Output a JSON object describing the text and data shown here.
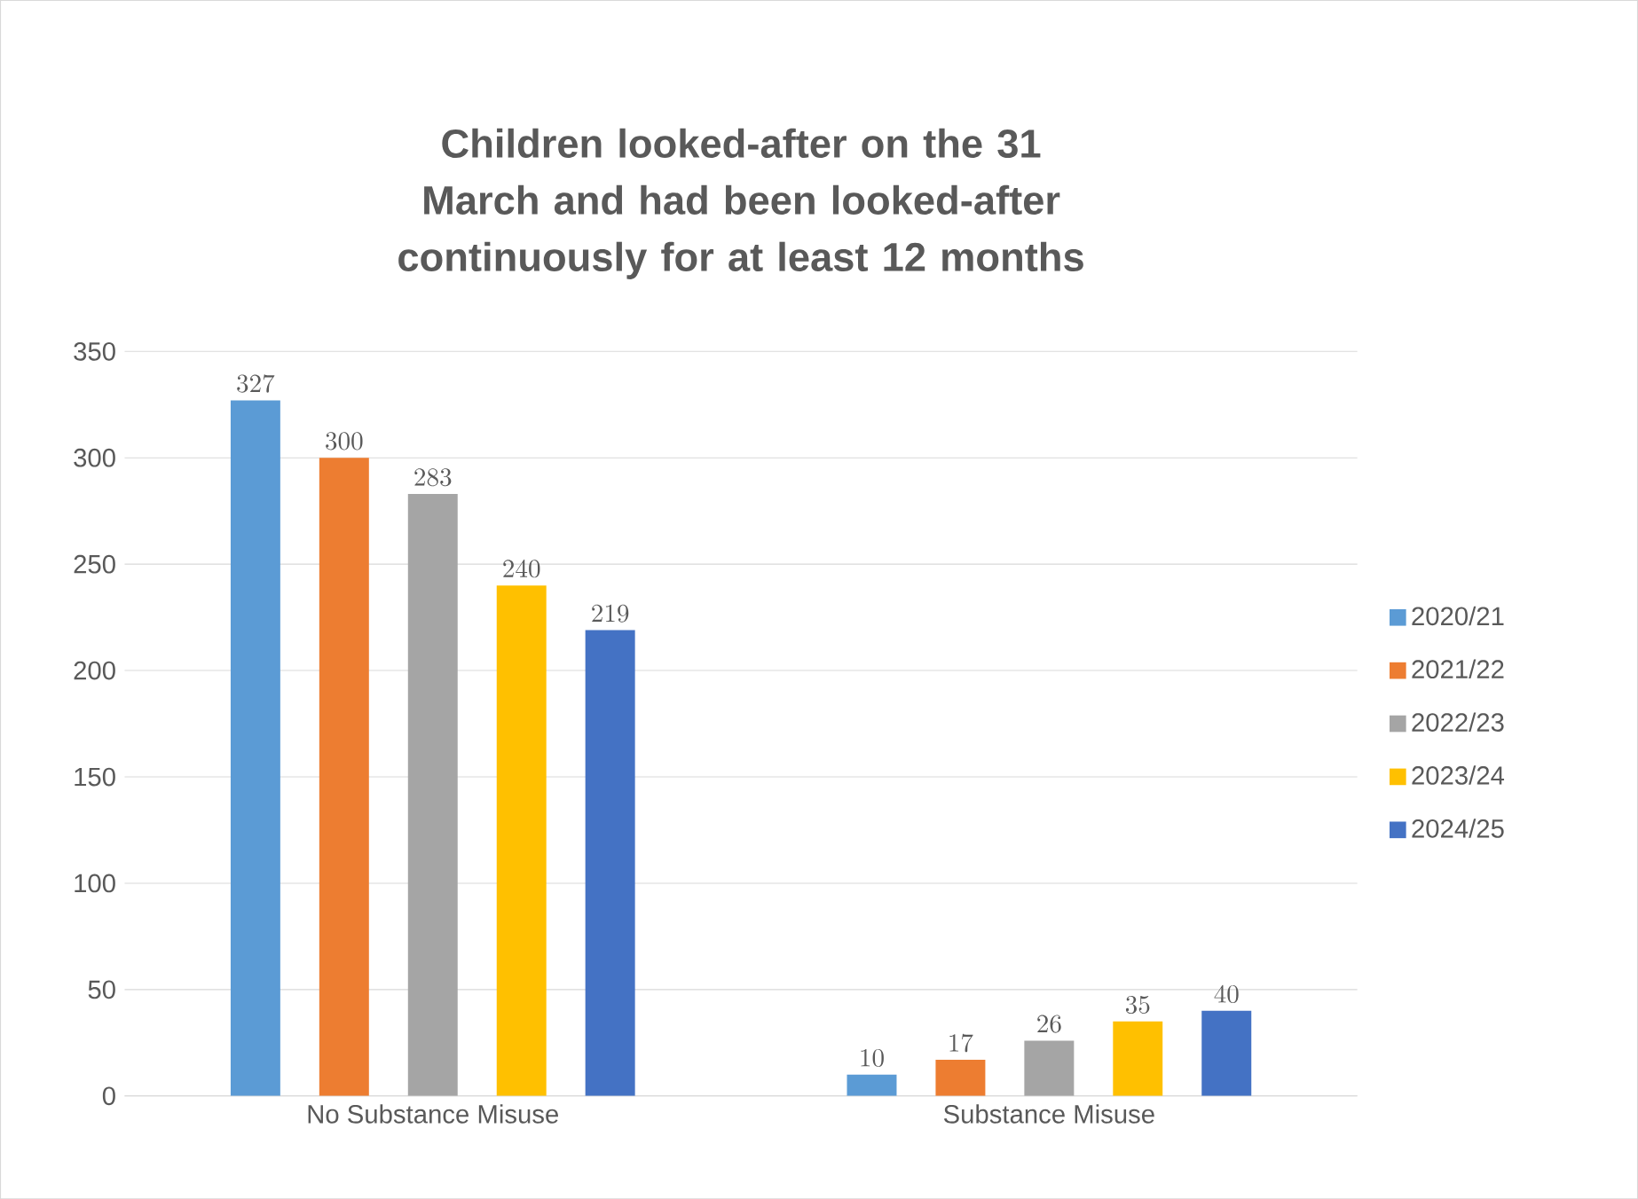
{
  "chart_data": {
    "type": "bar",
    "title": "Children  looked-after on the 31 March and had been looked-after continuously for at least 12 months",
    "categories": [
      "No Substance Misuse",
      "Substance Misuse"
    ],
    "series": [
      {
        "name": "2020/21",
        "color": "#5b9bd5",
        "values": [
          327,
          10
        ]
      },
      {
        "name": "2021/22",
        "color": "#ed7d31",
        "values": [
          300,
          17
        ]
      },
      {
        "name": "2022/23",
        "color": "#a5a5a5",
        "values": [
          283,
          26
        ]
      },
      {
        "name": "2023/24",
        "color": "#ffc000",
        "values": [
          240,
          35
        ]
      },
      {
        "name": "2024/25",
        "color": "#4472c4",
        "values": [
          219,
          40
        ]
      }
    ],
    "ylim": [
      0,
      350
    ],
    "yticks": [
      0,
      50,
      100,
      150,
      200,
      250,
      300,
      350
    ],
    "grid": "y",
    "legend": "right",
    "data_labels": true
  }
}
